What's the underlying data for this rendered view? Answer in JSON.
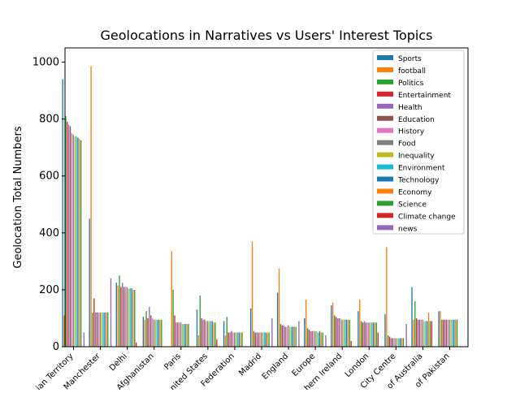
{
  "chart_data": {
    "type": "bar",
    "title": "Geolocations in Narratives vs Users' Interest Topics",
    "xlabel": "",
    "ylabel": "Geolocation Total Numbers",
    "ylim": [
      0,
      1050
    ],
    "yticks": [
      0,
      200,
      400,
      600,
      800,
      1000
    ],
    "grid": false,
    "legend_position": "top-right",
    "categories": [
      "Northern Territory",
      "Manchester",
      "Delhi",
      "Afghanistan",
      "Paris",
      "United States",
      "Russian Federation",
      "Madrid",
      "England",
      "Europe",
      "Northern Ireland",
      "London",
      "City Centre",
      "Commonwealth of Australia",
      "Islamic Republic of Pakistan"
    ],
    "tick_labels_visible": [
      "ian Territory",
      "Manchester",
      "Delhi",
      "Afghanistan",
      "Paris",
      "nited States",
      "Federation",
      "Madrid",
      "England",
      "Europe",
      "hern Ireland",
      "London",
      "City Centre",
      "of Australia",
      "of Pakistan"
    ],
    "series": [
      {
        "name": "Sports",
        "color": "#1f77b4",
        "values": [
          940,
          450,
          225,
          105,
          0,
          130,
          90,
          135,
          190,
          100,
          145,
          125,
          115,
          210,
          125
        ]
      },
      {
        "name": "football",
        "color": "#ff7f0e",
        "values": [
          110,
          985,
          215,
          95,
          335,
          40,
          40,
          370,
          275,
          165,
          155,
          165,
          350,
          95,
          125
        ]
      },
      {
        "name": "Politics",
        "color": "#2ca02c",
        "values": [
          810,
          120,
          250,
          125,
          200,
          180,
          105,
          55,
          80,
          65,
          110,
          90,
          40,
          160,
          95
        ]
      },
      {
        "name": "Entertainment",
        "color": "#d62728",
        "values": [
          790,
          170,
          210,
          100,
          110,
          100,
          50,
          50,
          75,
          60,
          105,
          85,
          35,
          100,
          95
        ]
      },
      {
        "name": "Health",
        "color": "#9467bd",
        "values": [
          780,
          120,
          225,
          140,
          85,
          95,
          50,
          50,
          75,
          55,
          100,
          90,
          30,
          95,
          95
        ]
      },
      {
        "name": "Education",
        "color": "#8c564b",
        "values": [
          775,
          120,
          210,
          110,
          85,
          95,
          55,
          50,
          70,
          55,
          100,
          85,
          30,
          95,
          95
        ]
      },
      {
        "name": "History",
        "color": "#e377c2",
        "values": [
          750,
          120,
          210,
          100,
          85,
          90,
          50,
          50,
          70,
          55,
          100,
          85,
          30,
          95,
          95
        ]
      },
      {
        "name": "Food",
        "color": "#7f7f7f",
        "values": [
          745,
          120,
          210,
          95,
          85,
          90,
          50,
          50,
          75,
          55,
          95,
          85,
          30,
          95,
          95
        ]
      },
      {
        "name": "Inequality",
        "color": "#bcbd22",
        "values": [
          740,
          120,
          205,
          95,
          80,
          90,
          50,
          50,
          70,
          55,
          95,
          85,
          30,
          90,
          95
        ]
      },
      {
        "name": "Environment",
        "color": "#17becf",
        "values": [
          740,
          120,
          205,
          95,
          80,
          90,
          50,
          50,
          70,
          50,
          95,
          85,
          30,
          90,
          95
        ]
      },
      {
        "name": "Technology",
        "color": "#1f77b4",
        "values": [
          735,
          120,
          205,
          95,
          80,
          90,
          50,
          50,
          70,
          55,
          95,
          85,
          30,
          90,
          95
        ]
      },
      {
        "name": "Economy",
        "color": "#ff7f0e",
        "values": [
          730,
          120,
          200,
          95,
          80,
          85,
          50,
          50,
          70,
          50,
          95,
          85,
          30,
          120,
          95
        ]
      },
      {
        "name": "Science",
        "color": "#2ca02c",
        "values": [
          725,
          120,
          200,
          95,
          80,
          85,
          50,
          50,
          70,
          50,
          95,
          85,
          30,
          90,
          95
        ]
      },
      {
        "name": "Climate change",
        "color": "#d62728",
        "values": [
          0,
          0,
          15,
          0,
          0,
          25,
          0,
          0,
          0,
          0,
          20,
          50,
          0,
          90,
          0
        ]
      },
      {
        "name": "news",
        "color": "#9467bd",
        "values": [
          50,
          240,
          0,
          0,
          0,
          0,
          0,
          100,
          90,
          40,
          0,
          0,
          80,
          0,
          0
        ]
      }
    ]
  }
}
